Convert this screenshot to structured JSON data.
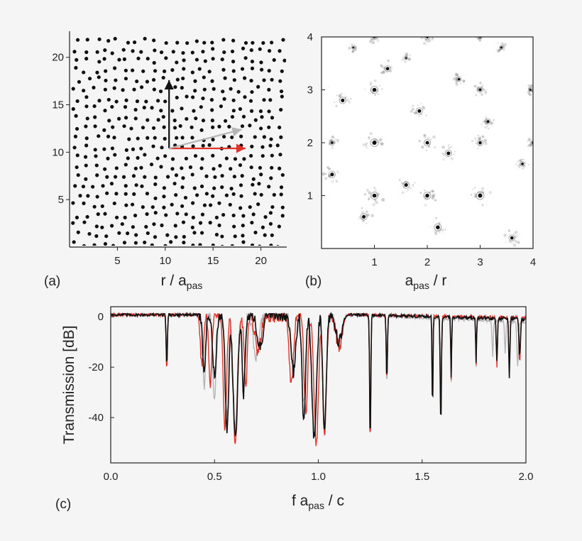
{
  "panel_labels": {
    "a": "(a)",
    "b": "(b)",
    "c": "(c)"
  },
  "chart_data": [
    {
      "panel": "a",
      "type": "scatter",
      "title": "",
      "xlabel": {
        "main": "r / a",
        "sub": "pas"
      },
      "ylabel": "",
      "xlim": [
        0,
        22.7
      ],
      "ylim": [
        0,
        22.6
      ],
      "xticks": [
        5,
        10,
        15,
        20
      ],
      "xtick_labels": [
        "5",
        "10",
        "15",
        "20"
      ],
      "yticks": [
        5,
        10,
        15,
        20
      ],
      "ytick_labels": [
        "5",
        "10",
        "15",
        "20"
      ],
      "point_color": "#111111",
      "point_set": "Dense hyperuniform-like point pattern filling the 22 x 22 square",
      "vectors": [
        {
          "name": "",
          "color": "#111111",
          "from": [
            10.4,
            10.4
          ],
          "to": [
            10.4,
            17.6
          ]
        },
        {
          "name": "",
          "color": "#e0342a",
          "from": [
            10.4,
            10.4
          ],
          "to": [
            18.4,
            10.4
          ]
        },
        {
          "name": "",
          "color": "#b5b5b5",
          "from": [
            10.4,
            10.4
          ],
          "to": [
            18.0,
            12.4
          ]
        }
      ]
    },
    {
      "panel": "b",
      "type": "heatmap",
      "title": "",
      "xlabel": {
        "main": "a",
        "sub": "pas",
        "tail": " / r"
      },
      "ylabel": "",
      "xlim": [
        0,
        4
      ],
      "ylim": [
        0,
        4
      ],
      "xticks": [
        1,
        2,
        3,
        4
      ],
      "xtick_labels": [
        "1",
        "2",
        "3",
        "4"
      ],
      "yticks": [
        1,
        2,
        3,
        4
      ],
      "ytick_labels": [
        "1",
        "2",
        "3",
        "4"
      ],
      "peaks": [
        {
          "x": 1.0,
          "y": 4.0,
          "w": 0.5
        },
        {
          "x": 2.0,
          "y": 4.0,
          "w": 0.6
        },
        {
          "x": 3.0,
          "y": 4.0,
          "w": 0.4
        },
        {
          "x": 1.0,
          "y": 3.0,
          "w": 0.9
        },
        {
          "x": 1.0,
          "y": 2.0,
          "w": 1.0
        },
        {
          "x": 2.0,
          "y": 2.0,
          "w": 0.8
        },
        {
          "x": 3.0,
          "y": 2.0,
          "w": 0.7
        },
        {
          "x": 4.0,
          "y": 2.0,
          "w": 0.5
        },
        {
          "x": 1.0,
          "y": 1.0,
          "w": 0.9
        },
        {
          "x": 2.0,
          "y": 1.0,
          "w": 0.9
        },
        {
          "x": 3.0,
          "y": 1.0,
          "w": 1.0
        },
        {
          "x": 3.0,
          "y": 3.0,
          "w": 0.6
        },
        {
          "x": 0.4,
          "y": 2.8,
          "w": 0.8
        },
        {
          "x": 1.85,
          "y": 2.6,
          "w": 0.8
        },
        {
          "x": 1.25,
          "y": 3.4,
          "w": 0.7
        },
        {
          "x": 2.4,
          "y": 1.8,
          "w": 0.8
        },
        {
          "x": 0.2,
          "y": 1.4,
          "w": 0.8
        },
        {
          "x": 1.6,
          "y": 1.2,
          "w": 0.8
        },
        {
          "x": 0.8,
          "y": 0.6,
          "w": 0.8
        },
        {
          "x": 2.2,
          "y": 0.4,
          "w": 0.9
        },
        {
          "x": 3.6,
          "y": 0.2,
          "w": 0.7
        },
        {
          "x": 3.15,
          "y": 2.4,
          "w": 0.6
        },
        {
          "x": 3.8,
          "y": 1.6,
          "w": 0.5
        },
        {
          "x": 2.6,
          "y": 3.2,
          "w": 0.5
        },
        {
          "x": 3.4,
          "y": 3.8,
          "w": 0.4
        },
        {
          "x": 0.6,
          "y": 3.8,
          "w": 0.3
        },
        {
          "x": 0.2,
          "y": 2.0,
          "w": 0.5
        },
        {
          "x": 3.95,
          "y": 3.0,
          "w": 0.4
        },
        {
          "x": 1.6,
          "y": 3.6,
          "w": 0.3
        }
      ],
      "colormap": "grayscale"
    },
    {
      "panel": "c",
      "type": "line",
      "title": "",
      "xlabel": {
        "main": "f a",
        "sub": "pas",
        "tail": " / c"
      },
      "ylabel": "Transmission [dB]",
      "xlim": [
        0,
        2.0
      ],
      "ylim": [
        -58,
        4
      ],
      "xticks": [
        0.0,
        0.5,
        1.0,
        1.5,
        2.0
      ],
      "xtick_labels": [
        "0.0",
        "0.5",
        "1.0",
        "1.5",
        "2.0"
      ],
      "yticks": [
        0,
        -20,
        -40
      ],
      "ytick_labels": [
        "0",
        "-20",
        "-40"
      ],
      "series": [
        {
          "color": "#b5b5b5",
          "dips": [
            [
              0.27,
              -20,
              0.004
            ],
            [
              0.45,
              -28,
              0.01
            ],
            [
              0.5,
              -32,
              0.012
            ],
            [
              0.56,
              -40,
              0.012
            ],
            [
              0.6,
              -44,
              0.015
            ],
            [
              0.64,
              -30,
              0.01
            ],
            [
              0.7,
              -16,
              0.02
            ],
            [
              0.88,
              -24,
              0.015
            ],
            [
              0.93,
              -36,
              0.012
            ],
            [
              0.98,
              -45,
              0.015
            ],
            [
              1.03,
              -46,
              0.012
            ],
            [
              1.1,
              -10,
              0.02
            ],
            [
              1.25,
              -48,
              0.004
            ],
            [
              1.33,
              -28,
              0.004
            ],
            [
              1.55,
              -36,
              0.003
            ],
            [
              1.59,
              -40,
              0.004
            ],
            [
              1.64,
              -26,
              0.003
            ],
            [
              1.76,
              -20,
              0.003
            ],
            [
              1.84,
              -16,
              0.004
            ],
            [
              1.9,
              -15,
              0.004
            ],
            [
              1.96,
              -20,
              0.005
            ]
          ],
          "drift": -5
        },
        {
          "color": "#e0342a",
          "dips": [
            [
              0.27,
              -22,
              0.004
            ],
            [
              0.44,
              -20,
              0.01
            ],
            [
              0.48,
              -26,
              0.01
            ],
            [
              0.55,
              -44,
              0.012
            ],
            [
              0.6,
              -50,
              0.015
            ],
            [
              0.65,
              -28,
              0.01
            ],
            [
              0.71,
              -14,
              0.02
            ],
            [
              0.87,
              -26,
              0.015
            ],
            [
              0.94,
              -40,
              0.012
            ],
            [
              0.99,
              -50,
              0.015
            ],
            [
              1.03,
              -48,
              0.012
            ],
            [
              1.1,
              -12,
              0.02
            ],
            [
              1.25,
              -52,
              0.004
            ],
            [
              1.33,
              -26,
              0.004
            ],
            [
              1.55,
              -38,
              0.003
            ],
            [
              1.59,
              -42,
              0.004
            ],
            [
              1.64,
              -25,
              0.003
            ],
            [
              1.76,
              -19,
              0.003
            ],
            [
              1.86,
              -20,
              0.004
            ],
            [
              1.92,
              -22,
              0.004
            ],
            [
              1.97,
              -18,
              0.005
            ]
          ],
          "drift": -2
        },
        {
          "color": "#111111",
          "dips": [
            [
              0.27,
              -20,
              0.004
            ],
            [
              0.45,
              -22,
              0.01
            ],
            [
              0.5,
              -24,
              0.012
            ],
            [
              0.56,
              -46,
              0.012
            ],
            [
              0.6,
              -48,
              0.015
            ],
            [
              0.64,
              -30,
              0.01
            ],
            [
              0.72,
              -12,
              0.02
            ],
            [
              0.88,
              -22,
              0.015
            ],
            [
              0.93,
              -42,
              0.012
            ],
            [
              0.98,
              -48,
              0.015
            ],
            [
              1.03,
              -45,
              0.012
            ],
            [
              1.1,
              -10,
              0.02
            ],
            [
              1.25,
              -50,
              0.004
            ],
            [
              1.33,
              -25,
              0.004
            ],
            [
              1.55,
              -39,
              0.003
            ],
            [
              1.59,
              -44,
              0.004
            ],
            [
              1.64,
              -24,
              0.003
            ],
            [
              1.76,
              -18,
              0.003
            ],
            [
              1.86,
              -17,
              0.004
            ],
            [
              1.92,
              -24,
              0.004
            ],
            [
              1.97,
              -16,
              0.005
            ]
          ],
          "drift": -3
        }
      ]
    }
  ]
}
